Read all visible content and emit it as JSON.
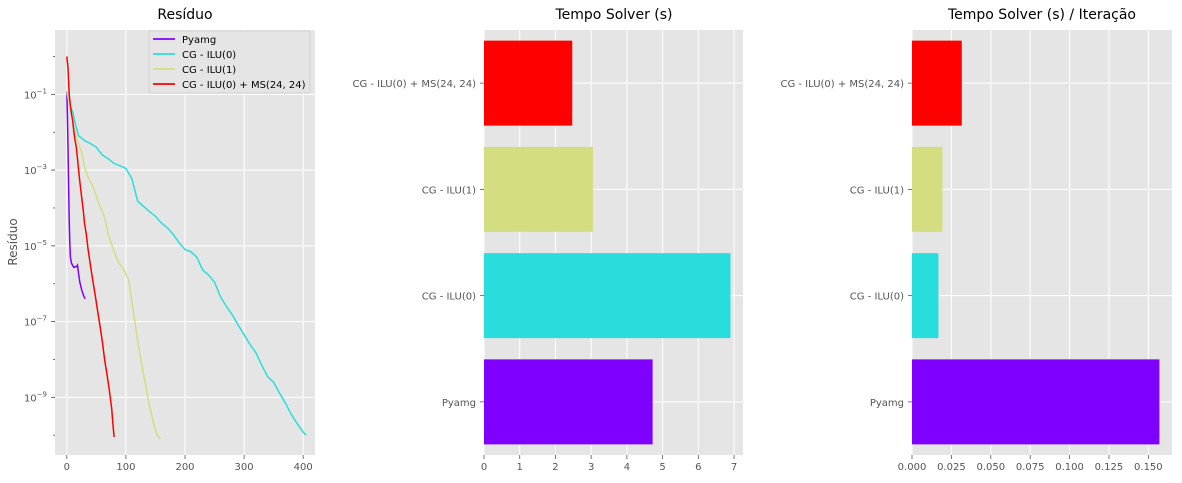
{
  "chart_data": [
    {
      "type": "line",
      "title": "Resíduo",
      "xlabel": "",
      "ylabel": "Resíduo",
      "yscale": "log",
      "xlim": [
        -20,
        420
      ],
      "ylim": [
        3e-11,
        5
      ],
      "xticks": [
        0,
        100,
        200,
        300,
        400
      ],
      "ytick_labels": [
        {
          "v": 0.1,
          "mant": "10",
          "exp": "−1"
        },
        {
          "v": 0.001,
          "mant": "10",
          "exp": "−3"
        },
        {
          "v": 1e-05,
          "mant": "10",
          "exp": "−5"
        },
        {
          "v": 1e-07,
          "mant": "10",
          "exp": "−7"
        },
        {
          "v": 1e-09,
          "mant": "10",
          "exp": "−9"
        }
      ],
      "grid": true,
      "legend_position": "top-right",
      "series": [
        {
          "name": "Pyamg",
          "color": "#8000ff",
          "x": [
            0,
            1,
            2,
            3,
            4,
            5,
            6,
            8,
            10,
            12,
            14,
            16,
            18,
            20,
            22,
            25,
            28,
            31
          ],
          "y": [
            0.12,
            0.03,
            0.004,
            0.0004,
            5e-05,
            1.2e-05,
            5e-06,
            3.5e-06,
            3e-06,
            2.7e-06,
            2.8e-06,
            2.8e-06,
            3.1e-06,
            1.8e-06,
            1.1e-06,
            7e-07,
            5e-07,
            4e-07
          ]
        },
        {
          "name": "CG - ILU(0)",
          "color": "#2adddd",
          "x": [
            0,
            5,
            10,
            15,
            20,
            25,
            30,
            40,
            50,
            60,
            70,
            80,
            90,
            100,
            110,
            115,
            120,
            130,
            140,
            150,
            160,
            170,
            180,
            190,
            200,
            210,
            220,
            230,
            240,
            250,
            260,
            270,
            280,
            290,
            300,
            310,
            320,
            330,
            340,
            350,
            360,
            370,
            380,
            390,
            400,
            405
          ],
          "y": [
            0.12,
            0.05,
            0.035,
            0.015,
            0.008,
            0.007,
            0.006,
            0.005,
            0.004,
            0.0025,
            0.002,
            0.0015,
            0.0013,
            0.0011,
            0.0006,
            0.0003,
            0.00015,
            0.00011,
            8e-05,
            6e-05,
            4e-05,
            3e-05,
            2e-05,
            1.2e-05,
            8e-06,
            7e-06,
            5e-06,
            2.3e-06,
            1.7e-06,
            1.1e-06,
            4.5e-07,
            2.5e-07,
            1.5e-07,
            8e-08,
            4.5e-08,
            2.5e-08,
            1.5e-08,
            7e-09,
            3.5e-09,
            2.5e-09,
            1.3e-09,
            7e-10,
            3.5e-10,
            2e-10,
            1.2e-10,
            1e-10
          ]
        },
        {
          "name": "CG - ILU(1)",
          "color": "#d4dd80",
          "x": [
            0,
            5,
            10,
            15,
            20,
            25,
            30,
            35,
            40,
            45,
            50,
            55,
            60,
            65,
            70,
            75,
            80,
            85,
            90,
            95,
            100,
            105,
            110,
            115,
            120,
            125,
            130,
            135,
            140,
            145,
            150,
            155,
            158
          ],
          "y": [
            0.12,
            0.05,
            0.02,
            0.008,
            0.005,
            0.003,
            0.0012,
            0.0007,
            0.0005,
            0.00035,
            0.0002,
            0.00012,
            8e-05,
            5e-05,
            2e-05,
            1.2e-05,
            7e-06,
            4.5e-06,
            3.2e-06,
            2.5e-06,
            1.8e-06,
            1.2e-06,
            3.5e-07,
            1e-07,
            3e-08,
            1e-08,
            4e-09,
            1.5e-09,
            6e-10,
            2.7e-10,
            1.3e-10,
            9e-11,
            8e-11
          ]
        },
        {
          "name": "CG - ILU(0) + MS(24, 24)",
          "color": "#ff0000",
          "x": [
            0,
            2,
            4,
            6,
            8,
            10,
            12,
            14,
            16,
            18,
            20,
            22,
            25,
            28,
            30,
            33,
            36,
            40,
            44,
            48,
            52,
            56,
            60,
            64,
            68,
            72,
            76,
            78,
            80
          ],
          "y": [
            1,
            0.5,
            0.1,
            0.05,
            0.03,
            0.02,
            0.01,
            0.006,
            0.004,
            0.002,
            0.001,
            0.0005,
            0.0002,
            8e-05,
            4e-05,
            2e-05,
            8e-06,
            3e-06,
            1.2e-06,
            5e-07,
            2e-07,
            8e-08,
            3e-08,
            1e-08,
            4e-09,
            1.5e-09,
            5e-10,
            2e-10,
            9e-11
          ]
        }
      ]
    },
    {
      "type": "bar",
      "orientation": "horizontal",
      "title": "Tempo Solver (s)",
      "xlabel": "",
      "ylabel": "",
      "xlim": [
        0,
        7.25
      ],
      "xticks": [
        "0",
        "1",
        "2",
        "3",
        "4",
        "5",
        "6",
        "7"
      ],
      "grid": true,
      "categories": [
        "Pyamg",
        "CG - ILU(0)",
        "CG - ILU(1)",
        "CG - ILU(0) + MS(24, 24)"
      ],
      "values": [
        4.72,
        6.9,
        3.05,
        2.47
      ],
      "colors": [
        "#8000ff",
        "#2adddd",
        "#d4dd80",
        "#ff0000"
      ]
    },
    {
      "type": "bar",
      "orientation": "horizontal",
      "title": "Tempo Solver (s) / Iteração",
      "xlabel": "",
      "ylabel": "",
      "xlim": [
        0,
        0.165
      ],
      "xticks": [
        "0.000",
        "0.025",
        "0.050",
        "0.075",
        "0.100",
        "0.125",
        "0.150"
      ],
      "grid": true,
      "categories": [
        "Pyamg",
        "CG - ILU(0)",
        "CG - ILU(1)",
        "CG - ILU(0) + MS(24, 24)"
      ],
      "values": [
        0.157,
        0.0168,
        0.0193,
        0.0316
      ],
      "colors": [
        "#8000ff",
        "#2adddd",
        "#d4dd80",
        "#ff0000"
      ]
    }
  ]
}
